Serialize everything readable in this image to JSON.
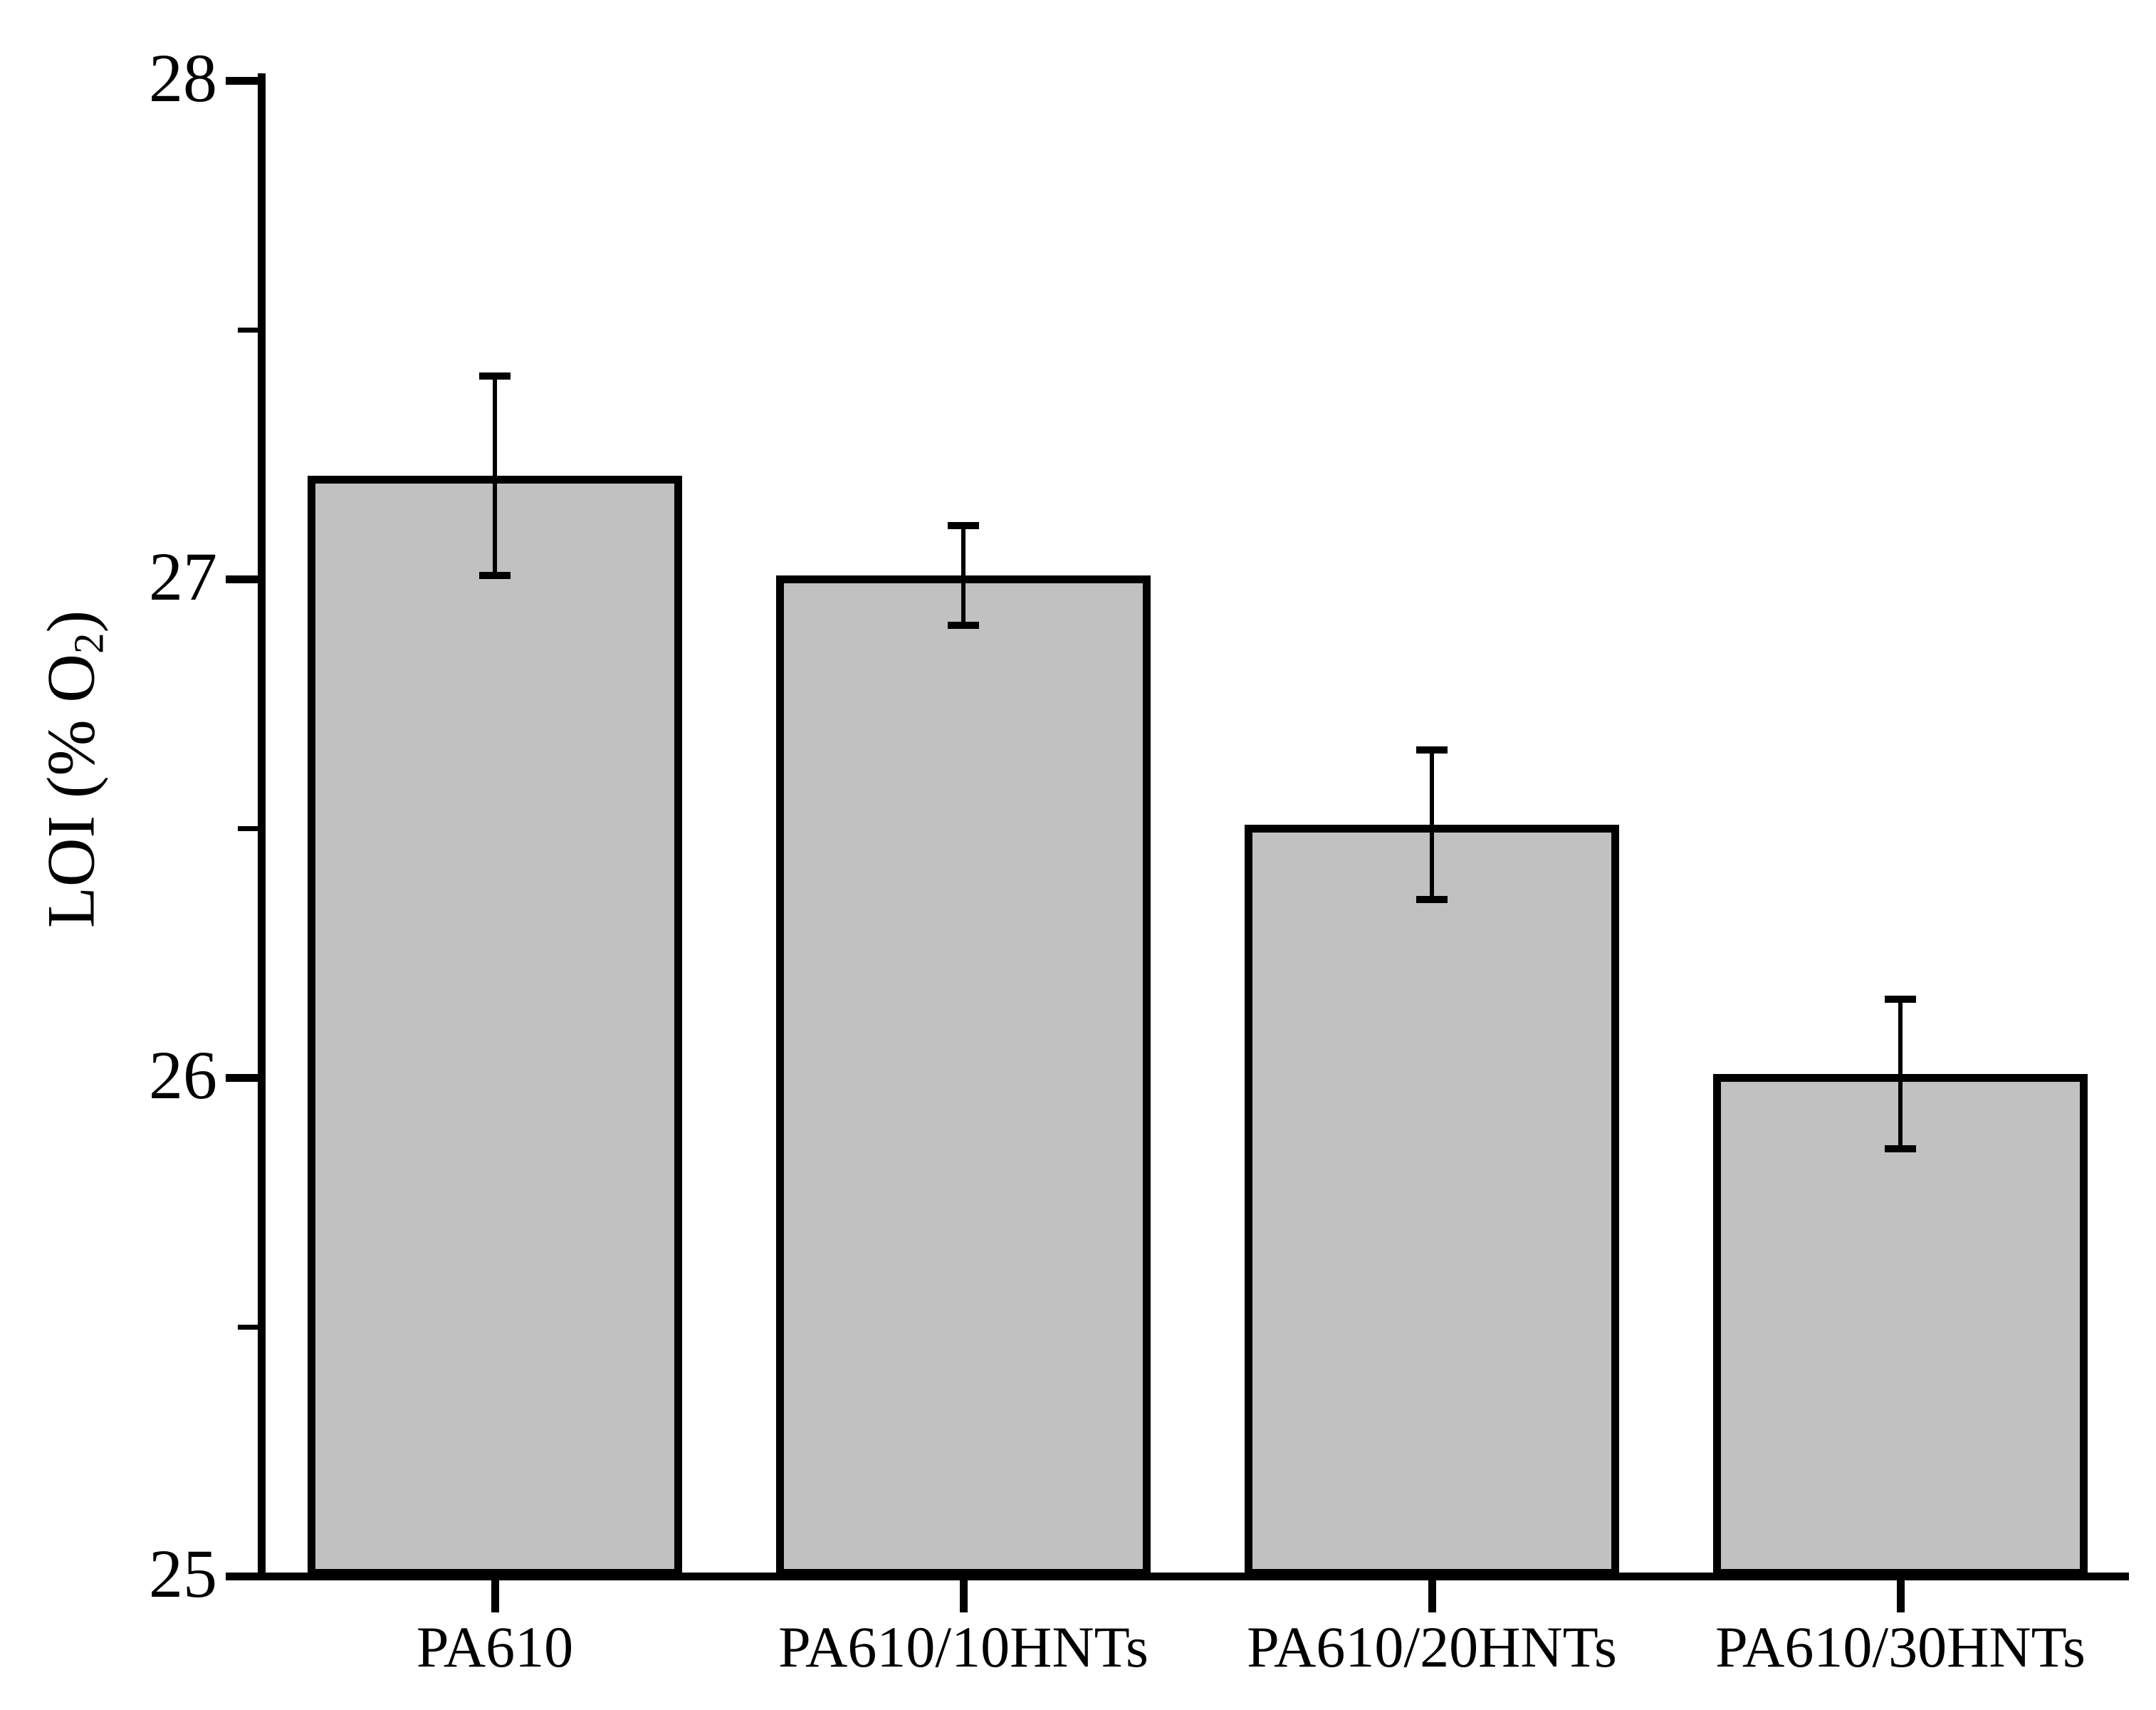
{
  "chart_data": {
    "type": "bar",
    "title": "",
    "categories": [
      "PA610",
      "PA610/10HNTs",
      "PA610/20HNTs",
      "PA610/30HNTs"
    ],
    "values": [
      27.2,
      27.0,
      26.5,
      26.0
    ],
    "error_plus": [
      0.2,
      0.1,
      0.15,
      0.15
    ],
    "error_minus": [
      0.2,
      0.1,
      0.15,
      0.15
    ],
    "error_caps_upper": [
      27.4,
      27.1,
      26.65,
      26.15
    ],
    "error_caps_lower": [
      27.0,
      26.9,
      26.35,
      25.85
    ],
    "xlabel": "",
    "ylabel": "LOI (% O₂)",
    "ylabel_parts": {
      "main": "LOI (% O",
      "sub": "2",
      "end": ")"
    },
    "ylim": [
      25,
      28
    ],
    "yticks": [
      25,
      26,
      27,
      28
    ],
    "ytick_labels": [
      "25",
      "26",
      "27",
      "28"
    ],
    "yticks_minor": [
      25.5,
      26.5,
      27.5
    ],
    "grid": false,
    "legend": null,
    "colors": {
      "bar_fill": "#c1c1c1",
      "bar_edge": "#000000",
      "axis": "#000000",
      "background": "#ffffff",
      "text": "#000000"
    }
  }
}
